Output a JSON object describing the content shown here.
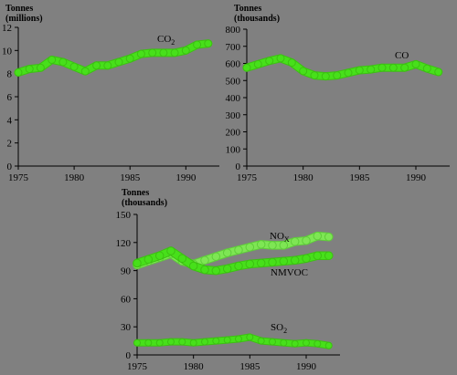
{
  "chart_data": [
    {
      "type": "line",
      "ylabel": [
        "Tonnes",
        "(millions)"
      ],
      "xlim": [
        1975,
        1993
      ],
      "ylim": [
        0,
        12
      ],
      "xticks": [
        "1975",
        "1980",
        "1985",
        "1990"
      ],
      "yticks": [
        "0",
        "2",
        "4",
        "6",
        "8",
        "10",
        "12"
      ],
      "grid": false,
      "series": [
        {
          "name": "CO",
          "subscript": "2",
          "x": [
            1975,
            1976,
            1977,
            1978,
            1979,
            1980,
            1981,
            1982,
            1983,
            1984,
            1985,
            1986,
            1987,
            1988,
            1989,
            1990,
            1991,
            1992
          ],
          "y": [
            8.1,
            8.4,
            8.5,
            9.2,
            9.0,
            8.6,
            8.2,
            8.7,
            8.7,
            9.0,
            9.3,
            9.7,
            9.8,
            9.8,
            9.8,
            10.0,
            10.5,
            10.6
          ]
        }
      ]
    },
    {
      "type": "line",
      "ylabel": [
        "Tonnes",
        "(thousands)"
      ],
      "xlim": [
        1975,
        1993
      ],
      "ylim": [
        0,
        800
      ],
      "xticks": [
        "1975",
        "1980",
        "1985",
        "1990"
      ],
      "yticks": [
        "0",
        "100",
        "200",
        "300",
        "400",
        "500",
        "600",
        "700",
        "800"
      ],
      "grid": false,
      "series": [
        {
          "name": "CO",
          "subscript": "",
          "x": [
            1975,
            1976,
            1977,
            1978,
            1979,
            1980,
            1981,
            1982,
            1983,
            1984,
            1985,
            1986,
            1987,
            1988,
            1989,
            1990,
            1991,
            1992
          ],
          "y": [
            575,
            595,
            615,
            630,
            605,
            555,
            530,
            525,
            530,
            545,
            560,
            565,
            575,
            575,
            575,
            595,
            570,
            550
          ]
        }
      ]
    },
    {
      "type": "line",
      "ylabel": [
        "Tonnes",
        "(thousands)"
      ],
      "xlim": [
        1975,
        1993
      ],
      "ylim": [
        0,
        150
      ],
      "xticks": [
        "1975",
        "1980",
        "1985",
        "1990"
      ],
      "yticks": [
        "0",
        "30",
        "60",
        "90",
        "120",
        "150"
      ],
      "grid": false,
      "series": [
        {
          "name": "NO",
          "subscript": "X",
          "x": [
            1975,
            1976,
            1977,
            1978,
            1979,
            1980,
            1981,
            1982,
            1983,
            1984,
            1985,
            1986,
            1987,
            1988,
            1989,
            1990,
            1991,
            1992
          ],
          "y": [
            96,
            100,
            104,
            108,
            100,
            97,
            101,
            105,
            109,
            112,
            115,
            118,
            117,
            117,
            121,
            122,
            127,
            126
          ]
        },
        {
          "name": "NMVOC",
          "subscript": "",
          "x": [
            1975,
            1976,
            1977,
            1978,
            1979,
            1980,
            1981,
            1982,
            1983,
            1984,
            1985,
            1986,
            1987,
            1988,
            1989,
            1990,
            1991,
            1992
          ],
          "y": [
            98,
            102,
            106,
            111,
            103,
            95,
            91,
            90,
            92,
            95,
            97,
            98,
            99,
            100,
            101,
            103,
            106,
            106
          ]
        },
        {
          "name": "SO",
          "subscript": "2",
          "x": [
            1975,
            1976,
            1977,
            1978,
            1979,
            1980,
            1981,
            1982,
            1983,
            1984,
            1985,
            1986,
            1987,
            1988,
            1989,
            1990,
            1991,
            1992
          ],
          "y": [
            13,
            13,
            13,
            14,
            14,
            13,
            14,
            15,
            16,
            17,
            19,
            15,
            14,
            13,
            12,
            13,
            12,
            10
          ]
        }
      ]
    }
  ]
}
